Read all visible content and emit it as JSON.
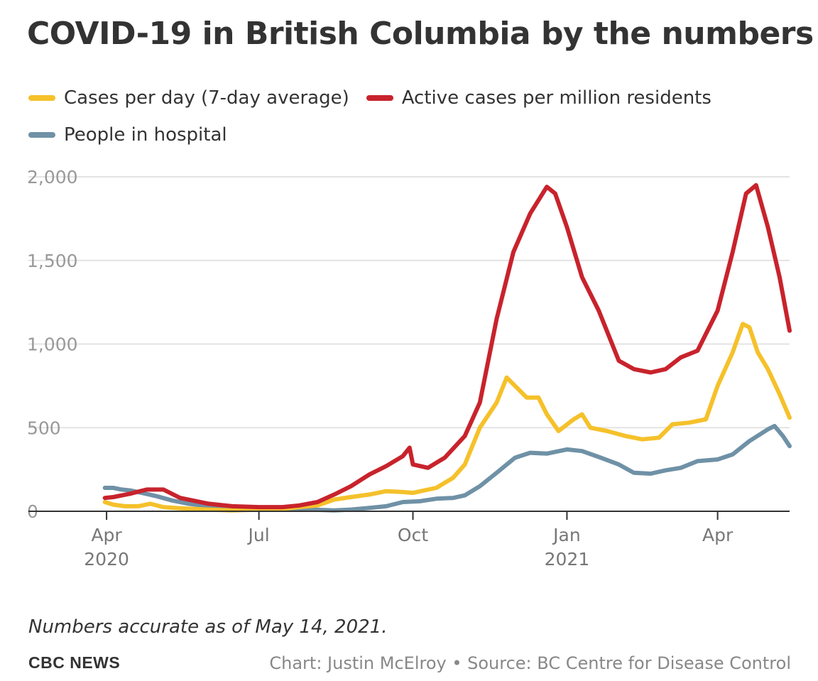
{
  "chart_data": {
    "type": "line",
    "title": "COVID-19 in British Columbia by the numbers",
    "xlabel": "",
    "ylabel": "",
    "x_range": [
      "2020-03-15",
      "2021-05-14"
    ],
    "ylim": [
      0,
      2000
    ],
    "y_ticks": [
      {
        "value": 0,
        "label": "0"
      },
      {
        "value": 500,
        "label": "500"
      },
      {
        "value": 1000,
        "label": "1,000"
      },
      {
        "value": 1500,
        "label": "1,500"
      },
      {
        "value": 2000,
        "label": "2,000"
      }
    ],
    "x_ticks": [
      {
        "date": "2020-04-01",
        "label": "Apr",
        "sublabel": "2020"
      },
      {
        "date": "2020-07-01",
        "label": "Jul",
        "sublabel": ""
      },
      {
        "date": "2020-10-01",
        "label": "Oct",
        "sublabel": ""
      },
      {
        "date": "2021-01-01",
        "label": "Jan",
        "sublabel": "2021"
      },
      {
        "date": "2021-04-01",
        "label": "Apr",
        "sublabel": ""
      }
    ],
    "grid": true,
    "legend_position": "top-left",
    "series": [
      {
        "name": "People in hospital",
        "color": "#6f91a6",
        "points": [
          [
            "2020-03-31",
            140
          ],
          [
            "2020-04-05",
            140
          ],
          [
            "2020-04-10",
            130
          ],
          [
            "2020-04-15",
            125
          ],
          [
            "2020-04-22",
            110
          ],
          [
            "2020-05-01",
            90
          ],
          [
            "2020-05-10",
            65
          ],
          [
            "2020-05-20",
            45
          ],
          [
            "2020-06-01",
            30
          ],
          [
            "2020-06-15",
            20
          ],
          [
            "2020-07-01",
            15
          ],
          [
            "2020-07-15",
            10
          ],
          [
            "2020-08-01",
            10
          ],
          [
            "2020-08-15",
            5
          ],
          [
            "2020-08-25",
            10
          ],
          [
            "2020-09-05",
            20
          ],
          [
            "2020-09-15",
            30
          ],
          [
            "2020-09-25",
            55
          ],
          [
            "2020-10-05",
            60
          ],
          [
            "2020-10-15",
            75
          ],
          [
            "2020-10-25",
            80
          ],
          [
            "2020-11-01",
            95
          ],
          [
            "2020-11-10",
            150
          ],
          [
            "2020-11-20",
            230
          ],
          [
            "2020-12-01",
            320
          ],
          [
            "2020-12-10",
            350
          ],
          [
            "2020-12-20",
            345
          ],
          [
            "2021-01-01",
            370
          ],
          [
            "2021-01-10",
            360
          ],
          [
            "2021-01-20",
            325
          ],
          [
            "2021-02-01",
            280
          ],
          [
            "2021-02-10",
            230
          ],
          [
            "2021-02-20",
            225
          ],
          [
            "2021-03-01",
            245
          ],
          [
            "2021-03-10",
            260
          ],
          [
            "2021-03-20",
            300
          ],
          [
            "2021-04-01",
            310
          ],
          [
            "2021-04-10",
            340
          ],
          [
            "2021-04-20",
            420
          ],
          [
            "2021-05-01",
            490
          ],
          [
            "2021-05-05",
            510
          ],
          [
            "2021-05-10",
            450
          ],
          [
            "2021-05-14",
            390
          ]
        ]
      },
      {
        "name": "Cases per day (7-day average)",
        "color": "#f5c12b",
        "points": [
          [
            "2020-03-31",
            55
          ],
          [
            "2020-04-05",
            40
          ],
          [
            "2020-04-12",
            30
          ],
          [
            "2020-04-20",
            30
          ],
          [
            "2020-04-27",
            45
          ],
          [
            "2020-05-05",
            25
          ],
          [
            "2020-05-15",
            18
          ],
          [
            "2020-06-01",
            10
          ],
          [
            "2020-06-15",
            5
          ],
          [
            "2020-07-01",
            10
          ],
          [
            "2020-07-15",
            15
          ],
          [
            "2020-07-25",
            25
          ],
          [
            "2020-08-05",
            35
          ],
          [
            "2020-08-15",
            70
          ],
          [
            "2020-08-25",
            85
          ],
          [
            "2020-09-05",
            100
          ],
          [
            "2020-09-15",
            120
          ],
          [
            "2020-09-25",
            115
          ],
          [
            "2020-10-01",
            110
          ],
          [
            "2020-10-15",
            140
          ],
          [
            "2020-10-25",
            200
          ],
          [
            "2020-11-01",
            280
          ],
          [
            "2020-11-10",
            500
          ],
          [
            "2020-11-20",
            650
          ],
          [
            "2020-11-26",
            800
          ],
          [
            "2020-12-01",
            750
          ],
          [
            "2020-12-08",
            680
          ],
          [
            "2020-12-15",
            680
          ],
          [
            "2020-12-20",
            580
          ],
          [
            "2020-12-27",
            480
          ],
          [
            "2021-01-05",
            550
          ],
          [
            "2021-01-10",
            580
          ],
          [
            "2021-01-15",
            500
          ],
          [
            "2021-01-25",
            480
          ],
          [
            "2021-02-05",
            450
          ],
          [
            "2021-02-15",
            430
          ],
          [
            "2021-02-25",
            440
          ],
          [
            "2021-03-05",
            520
          ],
          [
            "2021-03-15",
            530
          ],
          [
            "2021-03-25",
            550
          ],
          [
            "2021-04-01",
            750
          ],
          [
            "2021-04-10",
            950
          ],
          [
            "2021-04-16",
            1120
          ],
          [
            "2021-04-20",
            1100
          ],
          [
            "2021-04-25",
            950
          ],
          [
            "2021-05-01",
            850
          ],
          [
            "2021-05-08",
            700
          ],
          [
            "2021-05-14",
            560
          ]
        ]
      },
      {
        "name": "Active cases per million residents",
        "color": "#c8232c",
        "points": [
          [
            "2020-03-31",
            80
          ],
          [
            "2020-04-05",
            85
          ],
          [
            "2020-04-15",
            105
          ],
          [
            "2020-04-25",
            130
          ],
          [
            "2020-05-05",
            130
          ],
          [
            "2020-05-15",
            80
          ],
          [
            "2020-06-01",
            45
          ],
          [
            "2020-06-15",
            30
          ],
          [
            "2020-07-01",
            25
          ],
          [
            "2020-07-15",
            25
          ],
          [
            "2020-07-25",
            35
          ],
          [
            "2020-08-05",
            55
          ],
          [
            "2020-08-15",
            100
          ],
          [
            "2020-08-25",
            150
          ],
          [
            "2020-09-05",
            220
          ],
          [
            "2020-09-15",
            270
          ],
          [
            "2020-09-25",
            330
          ],
          [
            "2020-09-29",
            380
          ],
          [
            "2020-10-01",
            280
          ],
          [
            "2020-10-10",
            260
          ],
          [
            "2020-10-20",
            320
          ],
          [
            "2020-11-01",
            450
          ],
          [
            "2020-11-10",
            650
          ],
          [
            "2020-11-20",
            1150
          ],
          [
            "2020-11-30",
            1550
          ],
          [
            "2020-12-10",
            1780
          ],
          [
            "2020-12-20",
            1940
          ],
          [
            "2020-12-25",
            1900
          ],
          [
            "2021-01-01",
            1700
          ],
          [
            "2021-01-10",
            1400
          ],
          [
            "2021-01-20",
            1200
          ],
          [
            "2021-02-01",
            900
          ],
          [
            "2021-02-10",
            850
          ],
          [
            "2021-02-20",
            830
          ],
          [
            "2021-03-01",
            850
          ],
          [
            "2021-03-10",
            920
          ],
          [
            "2021-03-20",
            960
          ],
          [
            "2021-04-01",
            1200
          ],
          [
            "2021-04-10",
            1550
          ],
          [
            "2021-04-18",
            1900
          ],
          [
            "2021-04-24",
            1950
          ],
          [
            "2021-05-01",
            1700
          ],
          [
            "2021-05-08",
            1400
          ],
          [
            "2021-05-14",
            1080
          ]
        ]
      }
    ]
  },
  "note": "Numbers accurate as of May 14, 2021.",
  "brand": "CBC NEWS",
  "credit": "Chart: Justin McElroy • Source: BC Centre for Disease Control"
}
